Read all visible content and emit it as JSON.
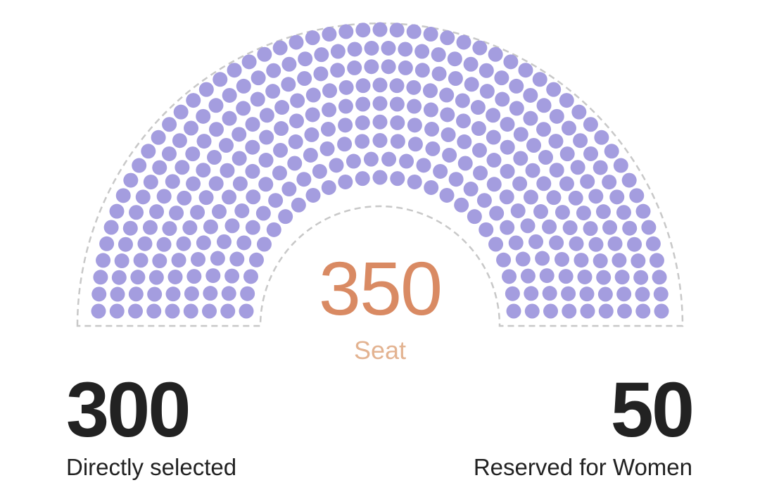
{
  "chart_data": {
    "type": "parliament",
    "total": 350,
    "total_label": "Seat",
    "series": [
      {
        "name": "Directly selected",
        "value": 300,
        "color": "#a49ddf"
      },
      {
        "name": "Reserved for Women",
        "value": 50,
        "color": "#a49ddf"
      }
    ],
    "center_color": "#d98a63",
    "outline_color": "#c8c8c8"
  },
  "stats": {
    "left": {
      "value": "300",
      "label": "Directly selected"
    },
    "right": {
      "value": "50",
      "label": "Reserved for Women"
    }
  }
}
